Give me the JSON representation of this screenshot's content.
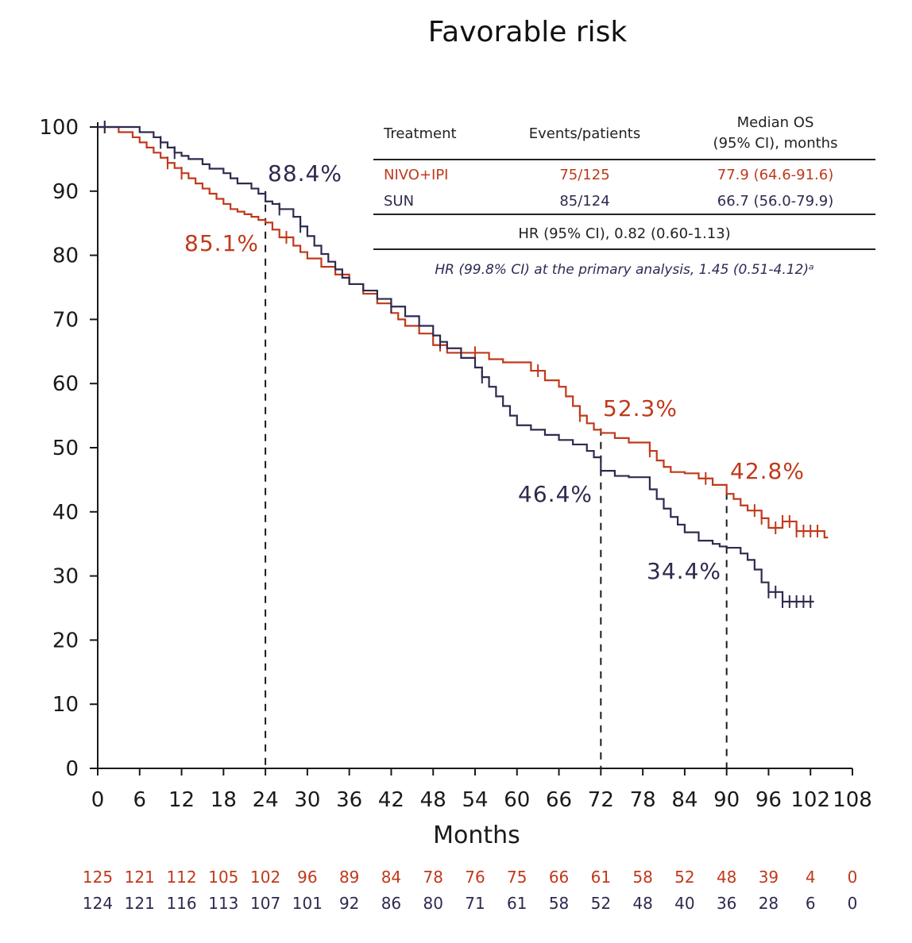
{
  "colors": {
    "nivo": "#c0391b",
    "sun": "#2e2a4f",
    "axis": "#1a1a1a"
  },
  "chart_data": {
    "type": "line",
    "title": "Favorable risk",
    "xlabel": "Months",
    "ylabel": "",
    "xlim": [
      0,
      108
    ],
    "ylim": [
      0,
      100
    ],
    "x_ticks": [
      0,
      6,
      12,
      18,
      24,
      30,
      36,
      42,
      48,
      54,
      60,
      66,
      72,
      78,
      84,
      90,
      96,
      102,
      108
    ],
    "y_ticks": [
      0,
      10,
      20,
      30,
      40,
      50,
      60,
      70,
      80,
      90,
      100
    ],
    "series": [
      {
        "name": "NIVO+IPI",
        "color": "#c0391b",
        "x": [
          0,
          3,
          5,
          6,
          7,
          8,
          9,
          10,
          11,
          12,
          13,
          14,
          15,
          16,
          17,
          18,
          19,
          20,
          21,
          22,
          23,
          24,
          25,
          26,
          28,
          29,
          30,
          32,
          34,
          36,
          38,
          40,
          42,
          43,
          44,
          46,
          48,
          50,
          52,
          54,
          56,
          58,
          60,
          61,
          62,
          64,
          66,
          67,
          68,
          69,
          70,
          71,
          72,
          74,
          76,
          78,
          79,
          80,
          81,
          82,
          84,
          86,
          88,
          90,
          91,
          92,
          93,
          94,
          95,
          96,
          98,
          100,
          102,
          104
        ],
        "y": [
          100,
          99.2,
          98.4,
          97.6,
          96.8,
          96,
          95.2,
          94.4,
          93.6,
          92.8,
          92,
          91.2,
          90.4,
          89.6,
          88.8,
          88,
          87.2,
          86.8,
          86.4,
          86,
          85.5,
          85.1,
          84,
          82.8,
          81.5,
          80.5,
          79.5,
          78.2,
          77,
          75.5,
          74,
          72.5,
          71,
          70,
          69,
          67.8,
          66,
          64.8,
          64.8,
          64.8,
          63.8,
          63.3,
          63.3,
          63.3,
          62,
          60.5,
          59.5,
          58,
          56.5,
          55,
          53.8,
          52.8,
          52.3,
          51.5,
          50.8,
          50.8,
          49.5,
          48,
          47,
          46.2,
          46,
          45.2,
          44.2,
          42.8,
          42,
          41,
          40.2,
          40.2,
          39,
          37.5,
          38.5,
          37,
          37,
          36
        ],
        "censor_x": [
          1,
          10,
          12,
          27,
          49,
          54,
          63,
          69,
          79,
          87,
          94,
          95,
          97,
          98,
          99,
          100,
          101,
          102,
          103
        ]
      },
      {
        "name": "SUN",
        "color": "#2e2a4f",
        "x": [
          0,
          6,
          8,
          9,
          10,
          11,
          12,
          13,
          15,
          16,
          18,
          19,
          20,
          22,
          23,
          24,
          25,
          26,
          28,
          29,
          30,
          31,
          32,
          33,
          34,
          35,
          36,
          38,
          40,
          42,
          44,
          46,
          48,
          49,
          50,
          52,
          54,
          55,
          56,
          57,
          58,
          59,
          60,
          62,
          64,
          66,
          68,
          70,
          71,
          72,
          74,
          76,
          78,
          79,
          80,
          81,
          82,
          83,
          84,
          86,
          88,
          89,
          90,
          92,
          93,
          94,
          95,
          96,
          98,
          100,
          102
        ],
        "y": [
          100,
          99.2,
          98.4,
          97.6,
          96.8,
          96,
          95.5,
          95,
          94.2,
          93.5,
          92.8,
          92,
          91.2,
          90.4,
          89.6,
          88.4,
          88,
          87.2,
          86,
          84.5,
          83,
          81.5,
          80.2,
          79,
          77.8,
          76.5,
          75.5,
          74.5,
          73.2,
          72,
          70.5,
          69,
          67.5,
          66.5,
          65.5,
          64,
          62.5,
          61,
          59.5,
          58,
          56.5,
          55,
          53.5,
          52.8,
          52,
          51.2,
          50.5,
          49.5,
          48.5,
          46.4,
          45.6,
          45.4,
          45.4,
          43.5,
          42,
          40.5,
          39.2,
          38,
          36.8,
          35.5,
          35,
          34.6,
          34.4,
          33.5,
          32.5,
          31,
          29,
          27.5,
          26,
          26,
          26
        ],
        "censor_x": [
          1,
          9,
          11,
          26,
          29,
          42,
          49,
          55,
          96,
          97,
          98,
          99,
          100,
          101,
          102
        ]
      }
    ],
    "annotations": [
      {
        "text": "88.4%",
        "series": "SUN",
        "x": 24,
        "y": 88.4
      },
      {
        "text": "85.1%",
        "series": "NIVO+IPI",
        "x": 24,
        "y": 85.1
      },
      {
        "text": "52.3%",
        "series": "NIVO+IPI",
        "x": 72,
        "y": 52.3
      },
      {
        "text": "46.4%",
        "series": "SUN",
        "x": 72,
        "y": 46.4
      },
      {
        "text": "42.8%",
        "series": "NIVO+IPI",
        "x": 90,
        "y": 42.8
      },
      {
        "text": "34.4%",
        "series": "SUN",
        "x": 90,
        "y": 34.4
      }
    ],
    "reference_x": [
      24,
      72,
      90
    ],
    "at_risk": {
      "x": [
        0,
        6,
        12,
        18,
        24,
        30,
        36,
        42,
        48,
        54,
        60,
        66,
        72,
        78,
        84,
        90,
        96,
        102,
        108
      ],
      "NIVO+IPI": [
        125,
        121,
        112,
        105,
        102,
        96,
        89,
        84,
        78,
        76,
        75,
        66,
        61,
        58,
        52,
        48,
        39,
        4,
        0
      ],
      "SUN": [
        124,
        121,
        116,
        113,
        107,
        101,
        92,
        86,
        80,
        71,
        61,
        58,
        52,
        48,
        40,
        36,
        28,
        6,
        0
      ]
    },
    "inset_table": {
      "headers": [
        "Treatment",
        "Events/patients",
        "Median OS",
        "(95% CI), months"
      ],
      "rows": [
        {
          "treatment": "NIVO+IPI",
          "events": "75/125",
          "median": "77.9 (64.6-91.6)"
        },
        {
          "treatment": "SUN",
          "events": "85/124",
          "median": "66.7 (56.0-79.9)"
        }
      ],
      "hr": "HR (95% CI), 0.82 (0.60-1.13)",
      "hr_primary": "HR (99.8% CI) at the primary analysis, 1.45 (0.51-4.12)ᵃ"
    }
  }
}
